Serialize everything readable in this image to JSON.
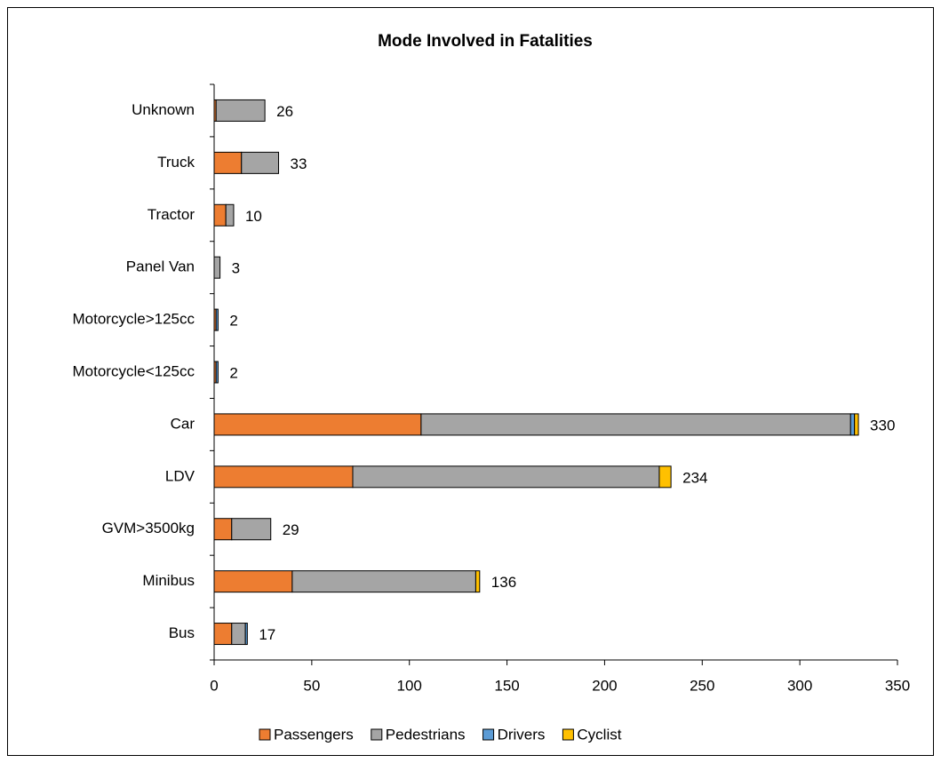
{
  "chart_data": {
    "type": "stacked-bar-horizontal",
    "title": "Mode Involved in Fatalities",
    "categories": [
      "Bus",
      "Minibus",
      "GVM>3500kg",
      "LDV",
      "Car",
      "Motorcycle<125cc",
      "Motorcycle>125cc",
      "Panel Van",
      "Tractor",
      "Truck",
      "Unknown"
    ],
    "series": [
      {
        "name": "Passengers",
        "color": "#ed7d31",
        "values": [
          9,
          40,
          9,
          71,
          106,
          1,
          1,
          0,
          6,
          14,
          1
        ]
      },
      {
        "name": "Pedestrians",
        "color": "#a5a5a5",
        "values": [
          7,
          94,
          20,
          157,
          220,
          0,
          0,
          3,
          4,
          19,
          25
        ]
      },
      {
        "name": "Drivers",
        "color": "#5b9bd5",
        "values": [
          1,
          0,
          0,
          0,
          2,
          1,
          1,
          0,
          0,
          0,
          0
        ]
      },
      {
        "name": "Cyclist",
        "color": "#ffc000",
        "values": [
          0,
          2,
          0,
          6,
          2,
          0,
          0,
          0,
          0,
          0,
          0
        ]
      }
    ],
    "totals": [
      17,
      136,
      29,
      234,
      330,
      2,
      2,
      3,
      10,
      33,
      26
    ],
    "xlim": [
      0,
      350
    ],
    "xticks": [
      0,
      50,
      100,
      150,
      200,
      250,
      300,
      350
    ],
    "legend": "bottom"
  }
}
